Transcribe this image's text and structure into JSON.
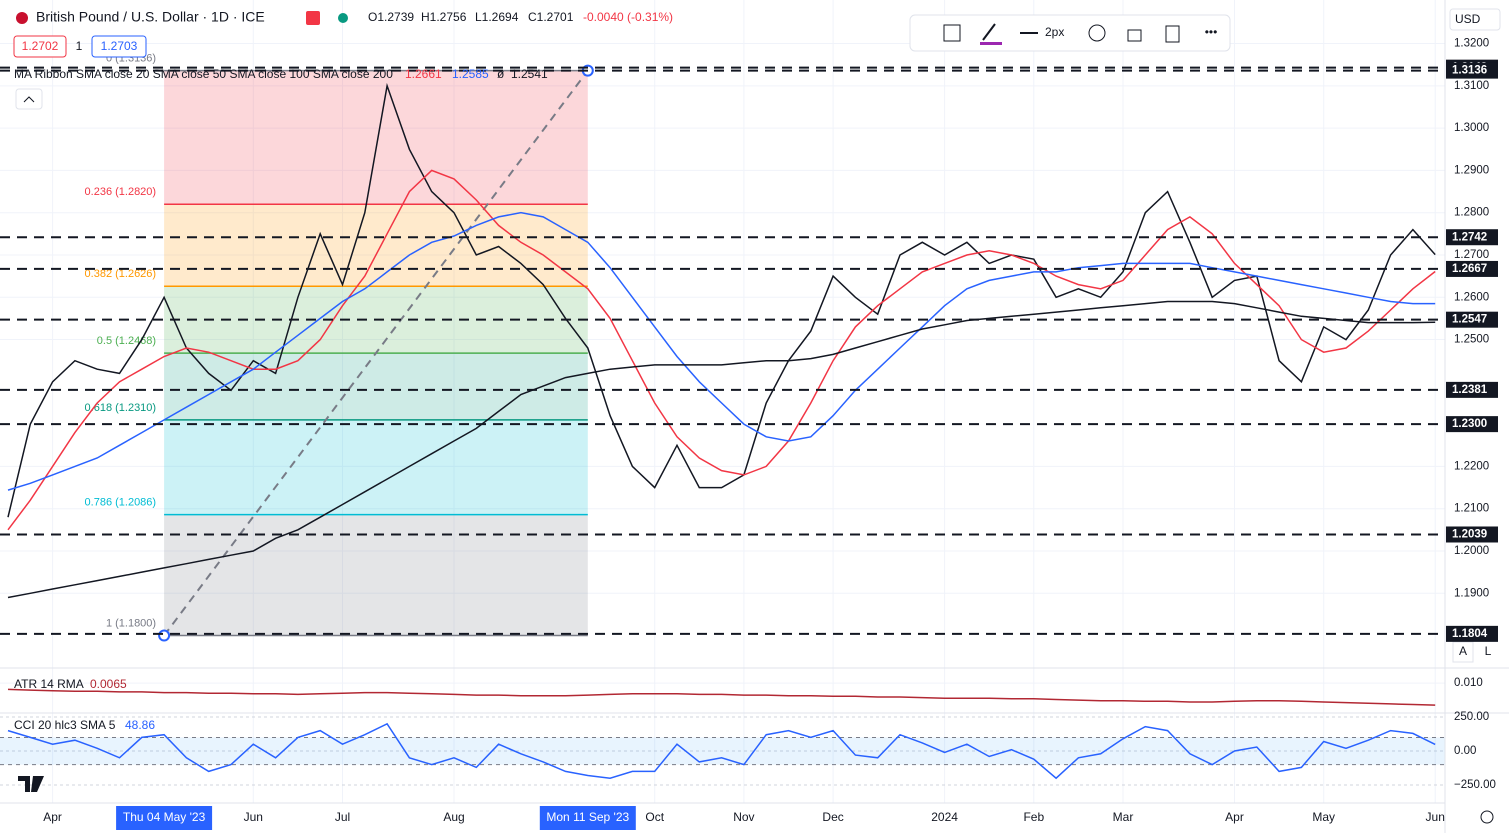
{
  "header": {
    "symbol": "British Pound / U.S. Dollar · 1D · ICE",
    "ohlc": [
      "O1.2739",
      "H1.2756",
      "L1.2694",
      "C1.2701",
      "-0.0040 (-0.31%)"
    ],
    "sell": "1.2702",
    "qty": "1",
    "buy": "1.2703",
    "legend": "MA Ribbon SMA close 20 SMA close 50 SMA close 100 SMA close 200",
    "legend_values": [
      "1.2661",
      "1.2585",
      "ø",
      "1.2541"
    ],
    "stroke": "2px",
    "currency": "USD",
    "buttons": [
      "A",
      "L"
    ]
  },
  "chart_data": [
    {
      "type": "line",
      "ylim": [
        1.1728,
        1.3303
      ],
      "yticks": [
        {
          "value": 1.32,
          "label": "1.3200"
        },
        {
          "value": 1.31,
          "label": "1.3100"
        },
        {
          "value": 1.3,
          "label": "1.3000"
        },
        {
          "value": 1.29,
          "label": "1.2900"
        },
        {
          "value": 1.28,
          "label": "1.2800"
        },
        {
          "value": 1.27,
          "label": "1.2700"
        },
        {
          "value": 1.26,
          "label": "1.2600"
        },
        {
          "value": 1.25,
          "label": "1.2500"
        },
        {
          "value": 1.22,
          "label": "1.2200"
        },
        {
          "value": 1.21,
          "label": "1.2100"
        },
        {
          "value": 1.2,
          "label": "1.2000"
        },
        {
          "value": 1.19,
          "label": "1.1900"
        }
      ],
      "grid": true,
      "categories": [
        null,
        null,
        "Apr",
        null,
        null,
        null,
        null,
        "Thu 04 May '23",
        null,
        null,
        null,
        "Jun",
        null,
        null,
        null,
        "Jul",
        null,
        null,
        null,
        null,
        "Aug",
        null,
        null,
        null,
        null,
        null,
        "Mon 11 Sep '23",
        null,
        null,
        "Oct",
        null,
        null,
        null,
        "Nov",
        null,
        null,
        null,
        "Dec",
        null,
        null,
        null,
        null,
        "2024",
        null,
        null,
        null,
        "Feb",
        null,
        null,
        null,
        "Mar",
        null,
        null,
        null,
        null,
        "Apr",
        null,
        null,
        null,
        "May",
        null,
        null,
        null,
        null,
        "Jun"
      ],
      "highlight": [
        7,
        26
      ],
      "series": [
        {
          "color": "#131722",
          "values": [
            1.208,
            1.23,
            1.24,
            1.245,
            1.243,
            1.242,
            1.25,
            1.26,
            1.248,
            1.242,
            1.238,
            1.245,
            1.242,
            1.26,
            1.275,
            1.263,
            1.28,
            1.31,
            1.295,
            1.285,
            1.28,
            1.27,
            1.272,
            1.268,
            1.263,
            1.255,
            1.248,
            1.232,
            1.22,
            1.215,
            1.225,
            1.215,
            1.215,
            1.218,
            1.235,
            1.245,
            1.252,
            1.265,
            1.26,
            1.256,
            1.27,
            1.273,
            1.27,
            1.273,
            1.268,
            1.27,
            1.269,
            1.26,
            1.262,
            1.26,
            1.266,
            1.28,
            1.285,
            1.273,
            1.26,
            1.264,
            1.265,
            1.245,
            1.24,
            1.253,
            1.25,
            1.257,
            1.27,
            1.276,
            1.2701
          ]
        },
        {
          "color": "#f23645",
          "values": [
            1.205,
            1.212,
            1.22,
            1.228,
            1.235,
            1.24,
            1.243,
            1.246,
            1.248,
            1.247,
            1.245,
            1.243,
            1.243,
            1.245,
            1.25,
            1.258,
            1.265,
            1.275,
            1.285,
            1.29,
            1.288,
            1.283,
            1.277,
            1.273,
            1.27,
            1.266,
            1.262,
            1.255,
            1.245,
            1.235,
            1.227,
            1.222,
            1.219,
            1.218,
            1.22,
            1.226,
            1.235,
            1.245,
            1.253,
            1.258,
            1.262,
            1.266,
            1.268,
            1.27,
            1.271,
            1.27,
            1.268,
            1.265,
            1.263,
            1.262,
            1.264,
            1.27,
            1.276,
            1.279,
            1.275,
            1.268,
            1.263,
            1.258,
            1.25,
            1.247,
            1.248,
            1.252,
            1.257,
            1.262,
            1.2661
          ]
        },
        {
          "color": "#2962ff",
          "values": [
            1.2144,
            1.216,
            1.218,
            1.22,
            1.222,
            1.225,
            1.228,
            1.231,
            1.234,
            1.237,
            1.24,
            1.243,
            1.247,
            1.251,
            1.255,
            1.259,
            1.262,
            1.266,
            1.27,
            1.273,
            1.2745,
            1.277,
            1.279,
            1.28,
            1.279,
            1.276,
            1.273,
            1.267,
            1.26,
            1.253,
            1.246,
            1.24,
            1.235,
            1.23,
            1.227,
            1.226,
            1.227,
            1.232,
            1.238,
            1.243,
            1.248,
            1.253,
            1.258,
            1.262,
            1.264,
            1.265,
            1.266,
            1.266,
            1.267,
            1.2675,
            1.268,
            1.268,
            1.268,
            1.268,
            1.267,
            1.266,
            1.265,
            1.264,
            1.263,
            1.262,
            1.261,
            1.26,
            1.259,
            1.2585,
            1.2585
          ]
        },
        {
          "color": "#131722",
          "values": [
            1.189,
            1.19,
            1.191,
            1.192,
            1.193,
            1.194,
            1.195,
            1.196,
            1.197,
            1.198,
            1.199,
            1.2,
            1.203,
            1.205,
            1.208,
            1.211,
            1.214,
            1.217,
            1.22,
            1.223,
            1.226,
            1.229,
            1.233,
            1.237,
            1.239,
            1.241,
            1.242,
            1.243,
            1.2435,
            1.244,
            1.244,
            1.244,
            1.244,
            1.2445,
            1.245,
            1.245,
            1.2455,
            1.2465,
            1.248,
            1.2495,
            1.251,
            1.2525,
            1.2535,
            1.2545,
            1.255,
            1.2555,
            1.256,
            1.2565,
            1.257,
            1.2575,
            1.258,
            1.2585,
            1.259,
            1.259,
            1.259,
            1.2585,
            1.2575,
            1.2565,
            1.2555,
            1.255,
            1.2545,
            1.254,
            1.254,
            1.254,
            1.2541
          ]
        }
      ],
      "levels": [
        1.3143,
        1.3136,
        1.2742,
        1.2667,
        1.2547,
        1.2381,
        {
          "value": 1.23,
          "label": "1.2300"
        },
        1.2039,
        1.1804
      ],
      "fib": {
        "start": 7,
        "end": 26,
        "levels": [
          {
            "label": "0 (1.3136)",
            "value": 1.3136,
            "color": "#787b86"
          },
          {
            "label": "0.236 (1.2820)",
            "value": 1.282,
            "color": "#f23645",
            "fill": "rgba(242,54,69,0.2)"
          },
          {
            "label": "0.382 (1.2626)",
            "value": 1.2626,
            "color": "#ff9800",
            "fill": "rgba(255,152,0,0.2)"
          },
          {
            "label": "0.5 (1.2468)",
            "value": 1.2468,
            "color": "#4caf50",
            "fill": "rgba(76,175,80,0.2)"
          },
          {
            "label": "0.618 (1.2310)",
            "value": 1.231,
            "color": "#089981",
            "fill": "rgba(8,153,129,0.2)"
          },
          {
            "label": "0.786 (1.2086)",
            "value": 1.2086,
            "color": "#00bcd4",
            "fill": "rgba(0,188,212,0.2)"
          },
          {
            "label": "1 (1.1800)",
            "value": 1.18,
            "color": "#787b86",
            "fill": "rgba(120,123,134,0.2)"
          }
        ]
      }
    },
    {
      "type": "line",
      "title": "ATR 14 RMA",
      "value_label": "0.0065",
      "ylim": [
        0.0054,
        0.0121
      ],
      "yticks": [
        {
          "value": 0.01,
          "label": "0.010"
        }
      ],
      "series": [
        {
          "color": "#b22833",
          "values": [
            0.009,
            0.0089,
            0.0088,
            0.0087,
            0.0087,
            0.0086,
            0.0086,
            0.0085,
            0.0085,
            0.0084,
            0.0084,
            0.0083,
            0.0083,
            0.0082,
            0.0083,
            0.0084,
            0.0085,
            0.0085,
            0.0084,
            0.0083,
            0.0082,
            0.0081,
            0.0081,
            0.008,
            0.008,
            0.008,
            0.0081,
            0.0082,
            0.0083,
            0.0083,
            0.0083,
            0.0082,
            0.0082,
            0.0081,
            0.0081,
            0.008,
            0.008,
            0.0079,
            0.0079,
            0.0078,
            0.0078,
            0.0077,
            0.0076,
            0.0076,
            0.0076,
            0.0075,
            0.0075,
            0.0074,
            0.0073,
            0.0072,
            0.0072,
            0.0071,
            0.0071,
            0.007,
            0.007,
            0.0071,
            0.0072,
            0.0072,
            0.0071,
            0.007,
            0.0069,
            0.0068,
            0.0067,
            0.0066,
            0.0065
          ]
        }
      ]
    },
    {
      "type": "line",
      "title": "CCI 20 hlc3 SMA 5",
      "value_label": "48.86",
      "ylim": [
        -360,
        265
      ],
      "band": [
        -100,
        100
      ],
      "yticks": [
        {
          "value": 250,
          "label": "250.00"
        },
        {
          "value": 0,
          "label": "0.00"
        },
        {
          "value": -250,
          "label": "−250.00"
        }
      ],
      "series": [
        {
          "color": "#2962ff",
          "values": [
            150,
            100,
            50,
            80,
            20,
            -50,
            100,
            120,
            -50,
            -150,
            -100,
            50,
            -50,
            100,
            150,
            50,
            120,
            200,
            -50,
            -100,
            -50,
            -120,
            50,
            -20,
            -80,
            -150,
            -180,
            -200,
            -150,
            -150,
            50,
            -80,
            -50,
            -100,
            120,
            150,
            100,
            150,
            -30,
            -50,
            120,
            60,
            -10,
            50,
            -40,
            10,
            -60,
            -200,
            -50,
            -20,
            90,
            180,
            150,
            -20,
            -100,
            0,
            30,
            -150,
            -120,
            70,
            20,
            80,
            150,
            130,
            48.86
          ]
        }
      ]
    }
  ]
}
